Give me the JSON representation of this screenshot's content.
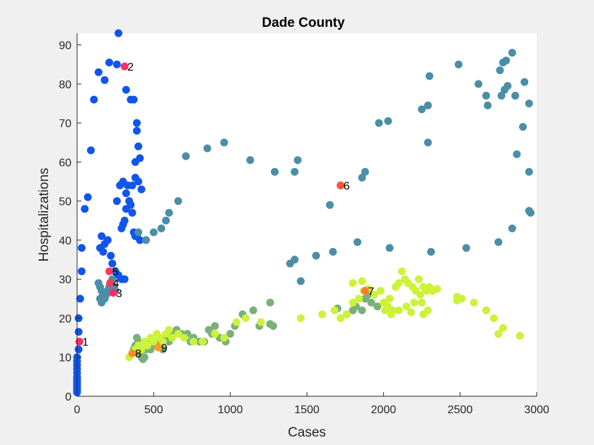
{
  "chart_data": {
    "type": "scatter",
    "title": "Dade County",
    "xlabel": "Cases",
    "ylabel": "Hospitalizations",
    "xlim": [
      0,
      3000
    ],
    "ylim": [
      0,
      93
    ],
    "xticks": [
      0,
      500,
      1000,
      1500,
      2000,
      2500,
      3000
    ],
    "yticks": [
      0,
      10,
      20,
      30,
      40,
      50,
      60,
      70,
      80,
      90
    ],
    "grid": false,
    "legend": "none",
    "color_scale": [
      "#1155ee",
      "#4a8ea8",
      "#7ab07a",
      "#ccf23a"
    ],
    "highlight_color": "#ff4a40",
    "series": [
      {
        "group": "early",
        "points": [
          [
            0,
            1
          ],
          [
            0,
            1.5
          ],
          [
            0,
            2
          ],
          [
            0,
            2.5
          ],
          [
            0,
            3
          ],
          [
            0,
            3.5
          ],
          [
            0,
            4
          ],
          [
            0,
            4.5
          ],
          [
            0,
            5
          ],
          [
            0,
            6
          ],
          [
            0,
            7
          ],
          [
            0,
            8
          ],
          [
            0,
            9
          ],
          [
            0,
            10
          ],
          [
            10,
            12
          ],
          [
            10,
            16.5
          ],
          [
            10,
            20
          ],
          [
            20,
            25
          ],
          [
            30,
            32
          ],
          [
            30,
            38
          ],
          [
            50,
            48
          ],
          [
            70,
            51
          ],
          [
            90,
            63
          ],
          [
            110,
            76
          ],
          [
            140,
            83
          ],
          [
            180,
            81
          ],
          [
            210,
            85.5
          ],
          [
            260,
            85
          ],
          [
            270,
            93
          ],
          [
            320,
            78.5
          ],
          [
            350,
            76
          ],
          [
            370,
            76
          ],
          [
            380,
            60
          ],
          [
            390,
            70
          ],
          [
            390,
            68
          ],
          [
            400,
            64
          ],
          [
            410,
            61
          ],
          [
            260,
            50
          ],
          [
            280,
            54
          ],
          [
            300,
            55
          ],
          [
            320,
            52
          ],
          [
            330,
            54
          ],
          [
            340,
            50
          ],
          [
            350,
            49
          ],
          [
            360,
            47
          ],
          [
            320,
            48
          ],
          [
            310,
            45
          ],
          [
            300,
            44
          ],
          [
            290,
            43
          ],
          [
            370,
            42
          ],
          [
            380,
            41
          ],
          [
            390,
            41
          ],
          [
            410,
            40
          ],
          [
            360,
            54
          ],
          [
            380,
            56
          ],
          [
            400,
            55
          ],
          [
            420,
            53
          ],
          [
            200,
            40
          ],
          [
            180,
            39
          ],
          [
            160,
            41
          ],
          [
            150,
            38
          ],
          [
            170,
            37
          ],
          [
            220,
            36
          ],
          [
            230,
            34
          ],
          [
            250,
            32
          ],
          [
            270,
            31
          ],
          [
            290,
            30
          ],
          [
            310,
            30
          ]
        ]
      },
      {
        "group": "spring-summer",
        "points": [
          [
            140,
            29
          ],
          [
            150,
            28
          ],
          [
            160,
            27
          ],
          [
            170,
            26
          ],
          [
            180,
            25
          ],
          [
            190,
            26
          ],
          [
            200,
            27
          ],
          [
            210,
            28
          ],
          [
            220,
            29
          ],
          [
            230,
            30
          ],
          [
            240,
            28
          ],
          [
            250,
            27
          ],
          [
            150,
            25
          ],
          [
            160,
            24
          ],
          [
            170,
            26
          ],
          [
            400,
            42
          ],
          [
            450,
            40
          ],
          [
            500,
            42
          ],
          [
            550,
            43
          ],
          [
            580,
            45
          ],
          [
            600,
            47
          ],
          [
            660,
            50
          ],
          [
            710,
            61.5
          ],
          [
            850,
            63.5
          ],
          [
            960,
            65
          ],
          [
            1130,
            60.5
          ],
          [
            1290,
            57.5
          ],
          [
            1420,
            57.5
          ],
          [
            1440,
            60.5
          ],
          [
            1650,
            49
          ],
          [
            1720,
            54
          ],
          [
            1860,
            56
          ],
          [
            1880,
            57.5
          ],
          [
            1970,
            70
          ],
          [
            2030,
            70.5
          ],
          [
            2250,
            73.5
          ],
          [
            2290,
            74.5
          ],
          [
            2300,
            82
          ],
          [
            2290,
            65
          ],
          [
            2490,
            85
          ],
          [
            2620,
            80
          ],
          [
            2670,
            77
          ],
          [
            2680,
            74.5
          ],
          [
            2760,
            83.5
          ],
          [
            2780,
            85.5
          ],
          [
            2800,
            86
          ],
          [
            2840,
            88
          ],
          [
            2770,
            77
          ],
          [
            2790,
            78.5
          ],
          [
            2810,
            79.5
          ],
          [
            2860,
            77
          ],
          [
            2920,
            80.5
          ],
          [
            2950,
            75
          ],
          [
            2910,
            69
          ],
          [
            2870,
            62
          ],
          [
            2950,
            57.5
          ],
          [
            2950,
            47.5
          ],
          [
            2960,
            47
          ],
          [
            2840,
            43
          ],
          [
            2750,
            39.5
          ],
          [
            2540,
            38
          ],
          [
            2310,
            37
          ],
          [
            2040,
            38
          ],
          [
            1830,
            39.5
          ],
          [
            1670,
            37
          ],
          [
            1560,
            36
          ],
          [
            1420,
            35
          ],
          [
            1390,
            34
          ],
          [
            1460,
            29.5
          ]
        ]
      },
      {
        "group": "fall",
        "points": [
          [
            370,
            12
          ],
          [
            380,
            13
          ],
          [
            390,
            15
          ],
          [
            400,
            14
          ],
          [
            410,
            11
          ],
          [
            420,
            10
          ],
          [
            430,
            9.5
          ],
          [
            440,
            10
          ],
          [
            450,
            12
          ],
          [
            460,
            13
          ],
          [
            470,
            14
          ],
          [
            480,
            12
          ],
          [
            500,
            13
          ],
          [
            520,
            14
          ],
          [
            540,
            13
          ],
          [
            560,
            12
          ],
          [
            580,
            15
          ],
          [
            600,
            14
          ],
          [
            620,
            16
          ],
          [
            650,
            17
          ],
          [
            680,
            16
          ],
          [
            700,
            15
          ],
          [
            720,
            16
          ],
          [
            740,
            14
          ],
          [
            760,
            15
          ],
          [
            800,
            14
          ],
          [
            830,
            14
          ],
          [
            860,
            17
          ],
          [
            880,
            16
          ],
          [
            900,
            18
          ],
          [
            930,
            15
          ],
          [
            970,
            14
          ],
          [
            1000,
            16
          ],
          [
            1030,
            18
          ],
          [
            1080,
            21
          ],
          [
            1150,
            22
          ],
          [
            1190,
            18
          ],
          [
            1260,
            24
          ],
          [
            1260,
            18.5
          ],
          [
            1280,
            18
          ],
          [
            1700,
            22.5
          ],
          [
            1760,
            21
          ],
          [
            1800,
            22
          ],
          [
            1820,
            23
          ],
          [
            1860,
            22
          ],
          [
            1880,
            25
          ],
          [
            1900,
            26
          ],
          [
            1920,
            24
          ],
          [
            1960,
            23
          ]
        ]
      },
      {
        "group": "winter",
        "points": [
          [
            340,
            10
          ],
          [
            360,
            11
          ],
          [
            380,
            12
          ],
          [
            400,
            13
          ],
          [
            420,
            12
          ],
          [
            440,
            14
          ],
          [
            460,
            13
          ],
          [
            480,
            15
          ],
          [
            500,
            14
          ],
          [
            520,
            16
          ],
          [
            540,
            15
          ],
          [
            560,
            14
          ],
          [
            580,
            16
          ],
          [
            600,
            17
          ],
          [
            620,
            15
          ],
          [
            660,
            16
          ],
          [
            700,
            15
          ],
          [
            760,
            14
          ],
          [
            820,
            14
          ],
          [
            900,
            16
          ],
          [
            960,
            15
          ],
          [
            1040,
            19
          ],
          [
            1100,
            20
          ],
          [
            1200,
            19
          ],
          [
            1460,
            20
          ],
          [
            1600,
            21
          ],
          [
            1680,
            22
          ],
          [
            1720,
            20
          ],
          [
            1760,
            21
          ],
          [
            1800,
            24
          ],
          [
            1840,
            25
          ],
          [
            1870,
            27
          ],
          [
            1900,
            27.5
          ],
          [
            1940,
            26
          ],
          [
            1980,
            27
          ],
          [
            2000,
            24
          ],
          [
            2010,
            22
          ],
          [
            2030,
            23
          ],
          [
            2050,
            21
          ],
          [
            2080,
            28
          ],
          [
            2100,
            29
          ],
          [
            2120,
            32
          ],
          [
            2140,
            30
          ],
          [
            2160,
            29
          ],
          [
            2190,
            28
          ],
          [
            2210,
            27
          ],
          [
            2230,
            30
          ],
          [
            2240,
            26
          ],
          [
            2260,
            28
          ],
          [
            2280,
            27
          ],
          [
            2300,
            28
          ],
          [
            2320,
            27
          ],
          [
            2350,
            27.5
          ],
          [
            2200,
            24
          ],
          [
            2150,
            23
          ],
          [
            2100,
            22
          ],
          [
            2060,
            22
          ],
          [
            2040,
            25
          ],
          [
            1860,
            29.5
          ],
          [
            1800,
            29
          ],
          [
            2180,
            21.5
          ],
          [
            2260,
            21
          ],
          [
            2290,
            22
          ],
          [
            2480,
            25.5
          ],
          [
            2510,
            25
          ],
          [
            2590,
            24
          ],
          [
            2670,
            22
          ],
          [
            2720,
            20
          ],
          [
            2780,
            17.5
          ],
          [
            2750,
            16
          ],
          [
            2890,
            15.5
          ],
          [
            2480,
            24.5
          ],
          [
            2250,
            24
          ]
        ]
      }
    ],
    "annotations": [
      {
        "label": "1",
        "x": 15,
        "y": 14,
        "color": "#ff2b6b"
      },
      {
        "label": "2",
        "x": 310,
        "y": 84.5,
        "color": "#ff2b6b"
      },
      {
        "label": "3",
        "x": 235,
        "y": 26.5,
        "color": "#ff2b6b"
      },
      {
        "label": "4",
        "x": 215,
        "y": 29,
        "color": "#ff3a5a"
      },
      {
        "label": "5",
        "x": 210,
        "y": 32,
        "color": "#ff3a5a"
      },
      {
        "label": "6",
        "x": 1720,
        "y": 54,
        "color": "#ff5038"
      },
      {
        "label": "7",
        "x": 1880,
        "y": 27,
        "color": "#ff7a30"
      },
      {
        "label": "8",
        "x": 360,
        "y": 11,
        "color": "#ff8a28"
      },
      {
        "label": "9",
        "x": 530,
        "y": 12.5,
        "color": "#ff9a20"
      }
    ]
  }
}
